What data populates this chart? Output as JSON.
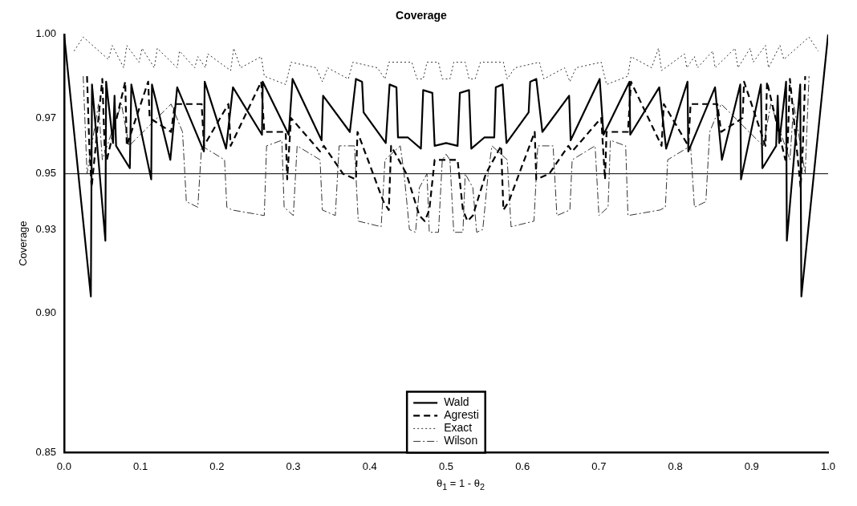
{
  "chart_data": {
    "type": "line",
    "title": "Coverage",
    "xlabel": "θ$_{1}$ = 1 - θ$_{2}$",
    "ylabel": "Coverage",
    "xlim": [
      0,
      1
    ],
    "ylim": [
      0.85,
      1
    ],
    "xticks": [
      {
        "value": 0,
        "label": "0.0"
      },
      0.1,
      0.2,
      0.3,
      0.4,
      0.5,
      0.6,
      0.7,
      0.8,
      0.9,
      {
        "value": 1,
        "label": "1.0"
      }
    ],
    "yticks": [
      {
        "value": 0.85,
        "label": "0.85"
      },
      {
        "value": 0.9,
        "label": "0.90"
      },
      0.93,
      0.95,
      0.97,
      {
        "value": 1,
        "label": "1.00"
      }
    ],
    "legend": "bottom",
    "marker": "none",
    "ref_lines": [
      {
        "axis": "y",
        "value": 0.95,
        "color": "#000000",
        "line_style": "solid"
      }
    ],
    "series": [
      {
        "name": "Wald",
        "color": "#000000",
        "line_style": "solid",
        "x": [
          0,
          0.035,
          0.0365,
          0.054,
          0.055,
          0.064,
          0.066,
          0.068,
          0.086,
          0.088,
          0.114,
          0.115,
          0.139,
          0.148,
          0.183,
          0.184,
          0.212,
          0.221,
          0.259,
          0.26,
          0.294,
          0.299,
          0.337,
          0.339,
          0.374,
          0.382,
          0.39,
          0.392,
          0.421,
          0.426,
          0.435,
          0.437,
          0.45,
          0.467,
          0.47,
          0.482,
          0.485,
          0.5,
          0.515,
          0.518,
          0.53,
          0.533,
          0.55,
          0.563,
          0.565,
          0.574,
          0.579,
          0.608,
          0.61,
          0.618,
          0.626,
          0.661,
          0.663,
          0.701,
          0.706,
          0.74,
          0.741,
          0.779,
          0.788,
          0.816,
          0.817,
          0.852,
          0.861,
          0.885,
          0.886,
          0.912,
          0.914,
          0.932,
          0.934,
          0.936,
          0.945,
          0.946,
          0.9635,
          0.965,
          1.0
        ],
        "values": [
          1.0,
          0.906,
          0.982,
          0.926,
          0.983,
          0.961,
          0.978,
          0.96,
          0.952,
          0.982,
          0.948,
          0.982,
          0.955,
          0.981,
          0.958,
          0.983,
          0.959,
          0.981,
          0.964,
          0.983,
          0.964,
          0.984,
          0.962,
          0.978,
          0.965,
          0.984,
          0.983,
          0.972,
          0.961,
          0.982,
          0.981,
          0.963,
          0.963,
          0.959,
          0.98,
          0.979,
          0.96,
          0.961,
          0.96,
          0.979,
          0.98,
          0.959,
          0.963,
          0.963,
          0.981,
          0.982,
          0.961,
          0.972,
          0.983,
          0.984,
          0.965,
          0.978,
          0.962,
          0.984,
          0.964,
          0.983,
          0.964,
          0.981,
          0.959,
          0.983,
          0.958,
          0.981,
          0.955,
          0.982,
          0.948,
          0.982,
          0.952,
          0.96,
          0.978,
          0.961,
          0.983,
          0.926,
          0.982,
          0.906,
          1.0
        ]
      },
      {
        "name": "Agresti",
        "color": "#000000",
        "line_style": "dashed",
        "x": [
          0.03,
          0.033,
          0.036,
          0.05,
          0.053,
          0.056,
          0.08,
          0.082,
          0.11,
          0.112,
          0.14,
          0.145,
          0.18,
          0.183,
          0.215,
          0.218,
          0.258,
          0.262,
          0.29,
          0.292,
          0.297,
          0.335,
          0.34,
          0.365,
          0.382,
          0.384,
          0.418,
          0.425,
          0.428,
          0.448,
          0.465,
          0.472,
          0.478,
          0.485,
          0.5,
          0.515,
          0.522,
          0.528,
          0.535,
          0.552,
          0.572,
          0.575,
          0.582,
          0.616,
          0.618,
          0.635,
          0.66,
          0.665,
          0.703,
          0.708,
          0.71,
          0.738,
          0.742,
          0.782,
          0.785,
          0.817,
          0.82,
          0.855,
          0.86,
          0.888,
          0.89,
          0.918,
          0.92,
          0.944,
          0.947,
          0.95,
          0.964,
          0.967,
          0.97
        ],
        "values": [
          0.985,
          0.96,
          0.945,
          0.984,
          0.96,
          0.955,
          0.983,
          0.96,
          0.983,
          0.97,
          0.965,
          0.975,
          0.975,
          0.96,
          0.975,
          0.96,
          0.983,
          0.965,
          0.965,
          0.948,
          0.97,
          0.958,
          0.96,
          0.95,
          0.948,
          0.965,
          0.94,
          0.937,
          0.96,
          0.95,
          0.935,
          0.933,
          0.937,
          0.955,
          0.955,
          0.955,
          0.937,
          0.933,
          0.935,
          0.95,
          0.96,
          0.937,
          0.94,
          0.965,
          0.948,
          0.95,
          0.96,
          0.958,
          0.97,
          0.948,
          0.965,
          0.965,
          0.983,
          0.96,
          0.975,
          0.96,
          0.975,
          0.975,
          0.965,
          0.97,
          0.983,
          0.96,
          0.983,
          0.955,
          0.96,
          0.984,
          0.945,
          0.96,
          0.985
        ]
      },
      {
        "name": "Exact",
        "color": "#333333",
        "line_style": "dotted",
        "x": [
          0.013,
          0.025,
          0.058,
          0.063,
          0.078,
          0.082,
          0.098,
          0.102,
          0.118,
          0.122,
          0.148,
          0.151,
          0.171,
          0.175,
          0.185,
          0.188,
          0.218,
          0.222,
          0.231,
          0.258,
          0.262,
          0.29,
          0.297,
          0.33,
          0.338,
          0.345,
          0.372,
          0.378,
          0.41,
          0.42,
          0.425,
          0.455,
          0.462,
          0.47,
          0.475,
          0.49,
          0.495,
          0.5,
          0.505,
          0.51,
          0.525,
          0.53,
          0.538,
          0.545,
          0.575,
          0.58,
          0.59,
          0.622,
          0.628,
          0.655,
          0.662,
          0.67,
          0.703,
          0.71,
          0.738,
          0.742,
          0.769,
          0.778,
          0.782,
          0.812,
          0.815,
          0.825,
          0.829,
          0.849,
          0.852,
          0.878,
          0.882,
          0.898,
          0.902,
          0.918,
          0.922,
          0.937,
          0.942,
          0.975,
          0.987
        ],
        "values": [
          0.994,
          0.999,
          0.991,
          0.996,
          0.988,
          0.996,
          0.99,
          0.995,
          0.988,
          0.995,
          0.988,
          0.994,
          0.988,
          0.992,
          0.988,
          0.993,
          0.987,
          0.995,
          0.988,
          0.992,
          0.985,
          0.982,
          0.99,
          0.988,
          0.983,
          0.988,
          0.984,
          0.99,
          0.988,
          0.984,
          0.99,
          0.99,
          0.984,
          0.984,
          0.99,
          0.99,
          0.984,
          0.984,
          0.984,
          0.99,
          0.99,
          0.984,
          0.984,
          0.99,
          0.99,
          0.984,
          0.988,
          0.99,
          0.984,
          0.988,
          0.983,
          0.988,
          0.99,
          0.982,
          0.985,
          0.992,
          0.988,
          0.995,
          0.987,
          0.993,
          0.988,
          0.992,
          0.988,
          0.994,
          0.988,
          0.995,
          0.988,
          0.995,
          0.99,
          0.996,
          0.988,
          0.996,
          0.991,
          0.999,
          0.994
        ]
      },
      {
        "name": "Wilson",
        "color": "#333333",
        "line_style": "dashdot",
        "x": [
          0.025,
          0.03,
          0.045,
          0.05,
          0.075,
          0.085,
          0.14,
          0.155,
          0.16,
          0.175,
          0.18,
          0.21,
          0.213,
          0.22,
          0.262,
          0.265,
          0.285,
          0.288,
          0.3,
          0.305,
          0.335,
          0.338,
          0.355,
          0.36,
          0.38,
          0.385,
          0.415,
          0.42,
          0.44,
          0.445,
          0.452,
          0.46,
          0.465,
          0.475,
          0.478,
          0.49,
          0.495,
          0.5,
          0.505,
          0.51,
          0.522,
          0.525,
          0.535,
          0.54,
          0.548,
          0.555,
          0.56,
          0.58,
          0.585,
          0.615,
          0.62,
          0.64,
          0.645,
          0.662,
          0.665,
          0.695,
          0.7,
          0.712,
          0.715,
          0.735,
          0.738,
          0.78,
          0.787,
          0.79,
          0.82,
          0.825,
          0.84,
          0.845,
          0.86,
          0.915,
          0.925,
          0.95,
          0.955,
          0.97,
          0.975
        ],
        "values": [
          0.985,
          0.95,
          0.975,
          0.955,
          0.975,
          0.96,
          0.975,
          0.965,
          0.94,
          0.938,
          0.96,
          0.955,
          0.938,
          0.937,
          0.935,
          0.96,
          0.962,
          0.938,
          0.935,
          0.96,
          0.955,
          0.937,
          0.935,
          0.96,
          0.96,
          0.933,
          0.931,
          0.955,
          0.96,
          0.95,
          0.93,
          0.929,
          0.945,
          0.95,
          0.929,
          0.929,
          0.955,
          0.957,
          0.955,
          0.929,
          0.929,
          0.95,
          0.945,
          0.929,
          0.93,
          0.95,
          0.96,
          0.955,
          0.931,
          0.933,
          0.96,
          0.96,
          0.935,
          0.937,
          0.955,
          0.96,
          0.935,
          0.938,
          0.962,
          0.96,
          0.935,
          0.937,
          0.938,
          0.955,
          0.96,
          0.938,
          0.94,
          0.965,
          0.975,
          0.96,
          0.975,
          0.955,
          0.975,
          0.95,
          0.985
        ]
      }
    ]
  }
}
